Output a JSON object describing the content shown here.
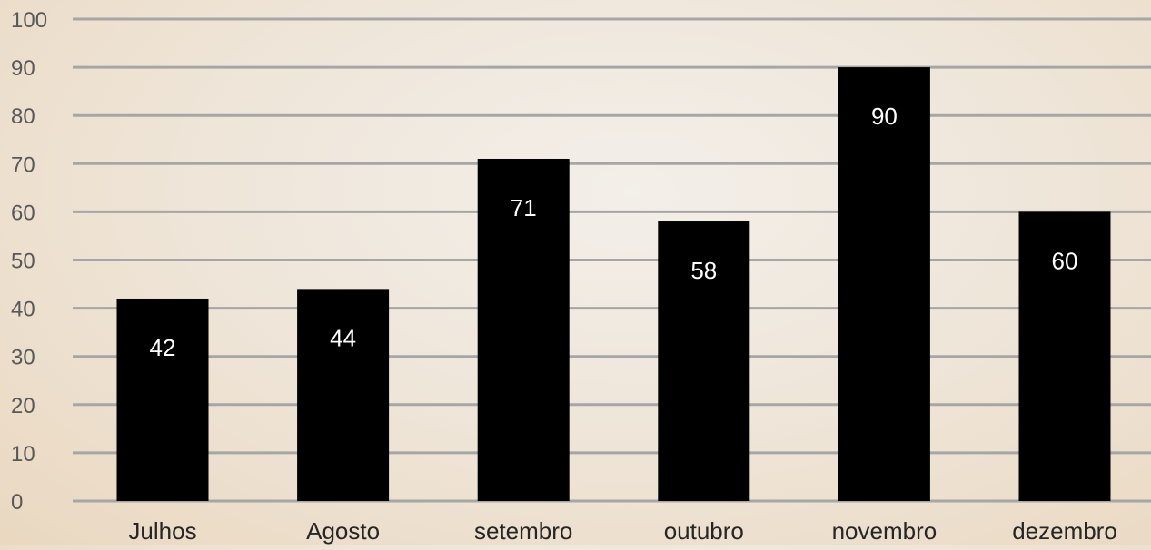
{
  "chart_data": {
    "type": "bar",
    "title": "",
    "xlabel": "",
    "ylabel": "",
    "categories": [
      "Julhos",
      "Agosto",
      "setembro",
      "outubro",
      "novembro",
      "dezembro"
    ],
    "values": [
      42,
      44,
      71,
      58,
      90,
      60
    ],
    "ylim": [
      0,
      100
    ],
    "yticks": [
      0,
      10,
      20,
      30,
      40,
      50,
      60,
      70,
      80,
      90,
      100
    ],
    "grid": true,
    "legend": "none",
    "colors": {
      "bar": "#000000",
      "grid": "#a6a6a6",
      "bar_label": "#ffffff",
      "tick_label": "#595959"
    }
  }
}
